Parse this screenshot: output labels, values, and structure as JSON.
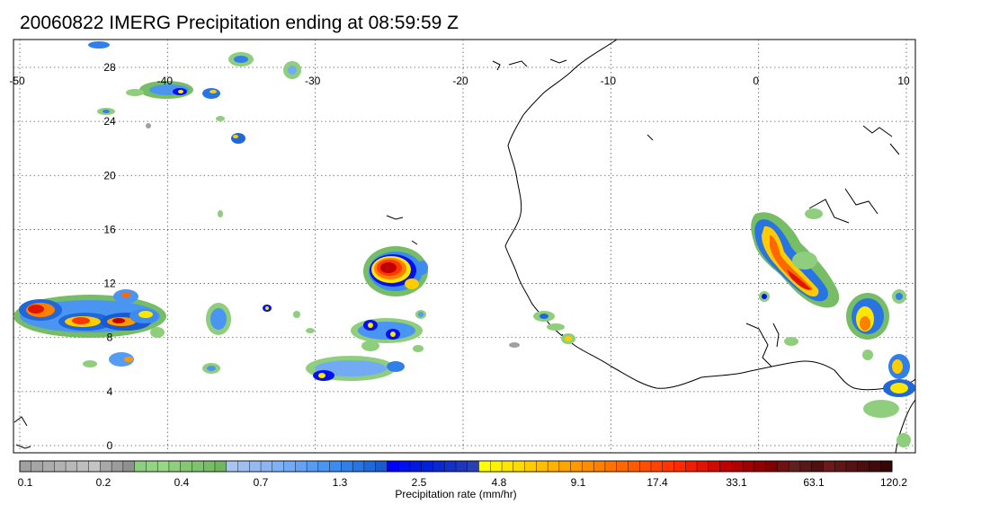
{
  "title": "20060822 IMERG Precipitation ending at 08:59:59 Z",
  "map": {
    "lon_range": [
      -50,
      10
    ],
    "lat_range": [
      -0.5,
      31
    ],
    "lon_ticks": [
      -50,
      -40,
      -30,
      -20,
      -10,
      0,
      10
    ],
    "lat_ticks": [
      0,
      4,
      8,
      12,
      16,
      20,
      24,
      28
    ],
    "gridlines": "dotted"
  },
  "colorbar": {
    "label": "Precipitation rate (mm/hr)",
    "tick_labels": [
      "0.1",
      "0.2",
      "0.4",
      "0.7",
      "1.3",
      "2.5",
      "4.8",
      "9.1",
      "17.4",
      "33.1",
      "63.1",
      "120.2"
    ],
    "colors": [
      "#a0a0a0",
      "#a6a6a6",
      "#acacac",
      "#b2b2b2",
      "#b8b8b8",
      "#bebebe",
      "#c4c4c4",
      "#a8a8a8",
      "#9c9c9c",
      "#909090",
      "#8ccf80",
      "#92d384",
      "#98d788",
      "#8fce7d",
      "#85c774",
      "#7fc36e",
      "#77bd66",
      "#6fb65e",
      "#a8c4f0",
      "#9fbff0",
      "#96bbf2",
      "#8bb6f3",
      "#80b1f4",
      "#72aaf4",
      "#64a3f4",
      "#579cf3",
      "#4a94f2",
      "#3d8bef",
      "#3180ea",
      "#2874e3",
      "#2067d9",
      "#195acf",
      "#0000ff",
      "#0010ee",
      "#0018e4",
      "#0020da",
      "#0a28d0",
      "#1430c6",
      "#1e36bc",
      "#2840b2",
      "#ffff00",
      "#fff200",
      "#ffe600",
      "#ffda00",
      "#ffcc00",
      "#ffbf00",
      "#ffb200",
      "#ffa500",
      "#ff9900",
      "#ff8d00",
      "#ff8000",
      "#ff7400",
      "#ff6800",
      "#ff5c00",
      "#ff4f00",
      "#ff4300",
      "#ff3600",
      "#ff2a00",
      "#f01e00",
      "#e01400",
      "#d00a00",
      "#c00000",
      "#b00000",
      "#a00000",
      "#900000",
      "#800000",
      "#701010",
      "#602020",
      "#581818",
      "#501010",
      "#6a1a1a",
      "#5e1616",
      "#541212",
      "#4a0e0e",
      "#400a0a",
      "#360606"
    ]
  },
  "precip_cells": [
    {
      "lon": -39,
      "lat": 9.8,
      "rate": 9.1
    },
    {
      "lon": -44,
      "lat": 9.6,
      "rate": 33.1
    },
    {
      "lon": -48.5,
      "lat": 10.4,
      "rate": 17.4
    },
    {
      "lon": -26,
      "lat": 13.0,
      "rate": 63.1
    },
    {
      "lon": -25.8,
      "lat": 9.4,
      "rate": 4.8
    },
    {
      "lon": -28.5,
      "lat": 5.5,
      "rate": 2.5
    },
    {
      "lon": 2.7,
      "lat": 14.5,
      "rate": 33.1
    },
    {
      "lon": 0.7,
      "lat": 15.8,
      "rate": 9.1
    },
    {
      "lon": 7.2,
      "lat": 10.0,
      "rate": 17.4
    },
    {
      "lon": 9.5,
      "lat": 6.0,
      "rate": 9.1
    },
    {
      "lon": 9.3,
      "lat": 4.3,
      "rate": 9.1
    },
    {
      "lon": -37,
      "lat": 27.3,
      "rate": 2.5
    },
    {
      "lon": -35.2,
      "lat": 22.8,
      "rate": 2.5
    }
  ]
}
